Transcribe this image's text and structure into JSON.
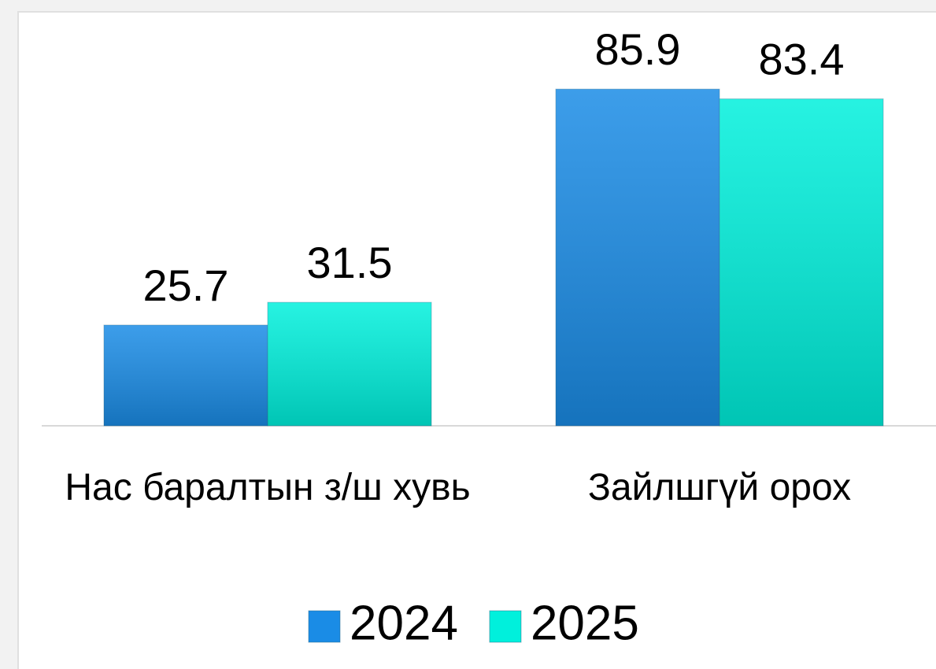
{
  "chart_data": {
    "type": "bar",
    "categories": [
      "Нас баралтын з/ш хувь",
      "Зайлшгүй орох"
    ],
    "series": [
      {
        "name": "2024",
        "color": "#1a8ce6",
        "values": [
          25.7,
          85.9
        ]
      },
      {
        "name": "2025",
        "color": "#00f0dc",
        "values": [
          31.5,
          83.4
        ]
      }
    ],
    "ylim": [
      0,
      100
    ]
  }
}
